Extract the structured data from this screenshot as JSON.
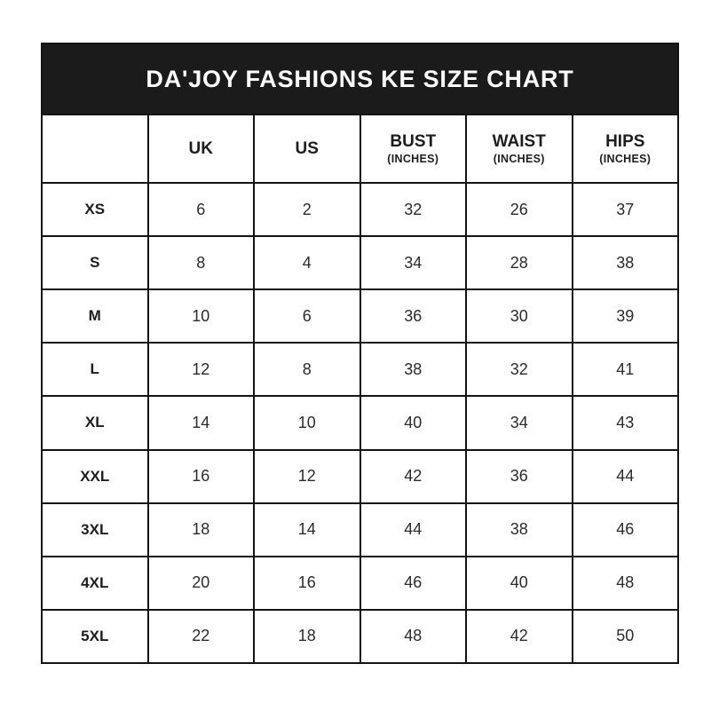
{
  "title": "DA'JOY FASHIONS KE SIZE CHART",
  "table": {
    "columns": [
      {
        "label": "",
        "sub": ""
      },
      {
        "label": "UK",
        "sub": ""
      },
      {
        "label": "US",
        "sub": ""
      },
      {
        "label": "BUST",
        "sub": "(INCHES)"
      },
      {
        "label": "WAIST",
        "sub": "(INCHES)"
      },
      {
        "label": "HIPS",
        "sub": "(INCHES)"
      }
    ],
    "rows": [
      [
        "XS",
        "6",
        "2",
        "32",
        "26",
        "37"
      ],
      [
        "S",
        "8",
        "4",
        "34",
        "28",
        "38"
      ],
      [
        "M",
        "10",
        "6",
        "36",
        "30",
        "39"
      ],
      [
        "L",
        "12",
        "8",
        "38",
        "32",
        "41"
      ],
      [
        "XL",
        "14",
        "10",
        "40",
        "34",
        "43"
      ],
      [
        "XXL",
        "16",
        "12",
        "42",
        "36",
        "44"
      ],
      [
        "3XL",
        "18",
        "14",
        "44",
        "38",
        "46"
      ],
      [
        "4XL",
        "20",
        "16",
        "46",
        "40",
        "48"
      ],
      [
        "5XL",
        "22",
        "18",
        "48",
        "42",
        "50"
      ]
    ]
  },
  "colors": {
    "banner_bg": "#1b1b1b",
    "banner_text": "#ffffff",
    "border": "#141414",
    "background": "#ffffff",
    "cell_text": "#2b2b2b"
  },
  "chart_data": {
    "type": "table",
    "title": "DA'JOY FASHIONS KE SIZE CHART",
    "categories": [
      "XS",
      "S",
      "M",
      "L",
      "XL",
      "XXL",
      "3XL",
      "4XL",
      "5XL"
    ],
    "series": [
      {
        "name": "UK",
        "values": [
          6,
          8,
          10,
          12,
          14,
          16,
          18,
          20,
          22
        ]
      },
      {
        "name": "US",
        "values": [
          2,
          4,
          6,
          8,
          10,
          12,
          14,
          16,
          18
        ]
      },
      {
        "name": "BUST (INCHES)",
        "values": [
          32,
          34,
          36,
          38,
          40,
          42,
          44,
          46,
          48
        ]
      },
      {
        "name": "WAIST (INCHES)",
        "values": [
          26,
          28,
          30,
          32,
          34,
          36,
          38,
          40,
          42
        ]
      },
      {
        "name": "HIPS (INCHES)",
        "values": [
          37,
          38,
          39,
          41,
          43,
          44,
          46,
          48,
          50
        ]
      }
    ]
  }
}
